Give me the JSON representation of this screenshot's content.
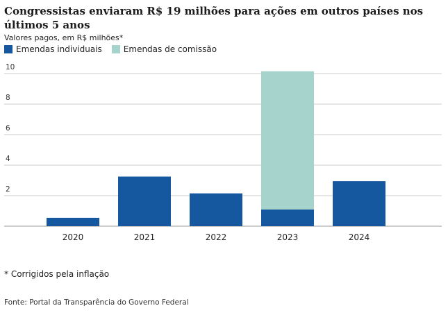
{
  "title": "Congressistas enviaram R$ 19 milhões para ações em outros países nos últimos 5 anos",
  "subtitle": "Valores pagos, em R$ milhões*",
  "note": "* Corrigidos pela inflação",
  "source": "Fonte: Portal da Transparência do Governo Federal",
  "legend": [
    {
      "label": "Emendas individuais",
      "color": "#1558a0"
    },
    {
      "label": "Emendas de comissão",
      "color": "#a6d4cc"
    }
  ],
  "chart_data": {
    "type": "bar",
    "stacked": true,
    "title": "Congressistas enviaram R$ 19 milhões para ações em outros países nos últimos 5 anos",
    "subtitle": "Valores pagos, em R$ milhões*",
    "categories": [
      "2020",
      "2021",
      "2022",
      "2023",
      "2024"
    ],
    "series": [
      {
        "name": "Emendas individuais",
        "color": "#1558a0",
        "values": [
          0.55,
          3.25,
          2.15,
          1.1,
          2.95
        ]
      },
      {
        "name": "Emendas de comissão",
        "color": "#a6d4cc",
        "values": [
          0,
          0,
          0,
          9.05,
          0
        ]
      }
    ],
    "ylim": [
      0,
      10
    ],
    "yticks": [
      2,
      4,
      6,
      8,
      10
    ],
    "xlabel": "",
    "ylabel": "",
    "grid": true,
    "legend_position": "top-left"
  }
}
